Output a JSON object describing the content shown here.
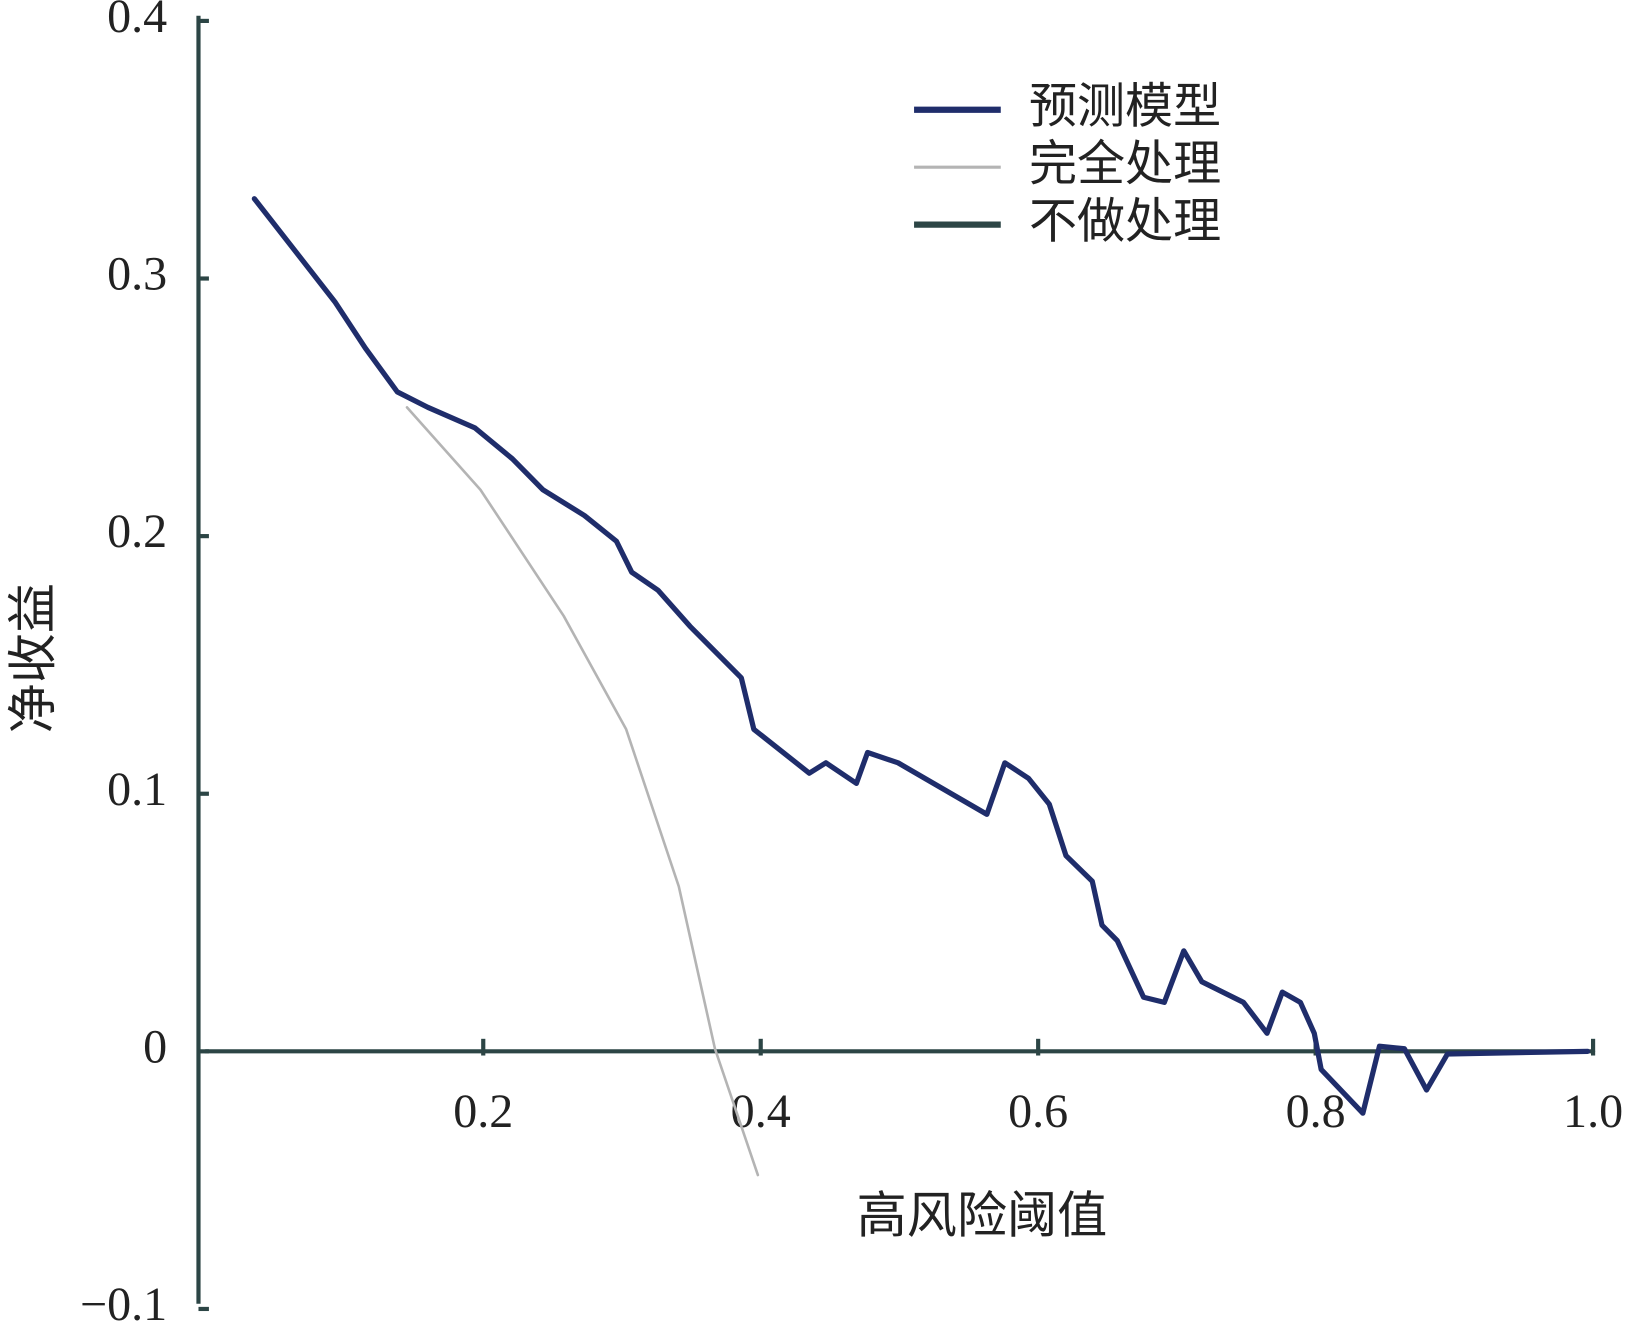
{
  "chart_data": {
    "type": "line",
    "xlabel": "高风险阈值",
    "ylabel": "净收益",
    "xlim": [
      0,
      1
    ],
    "ylim": [
      -0.1,
      0.4
    ],
    "xticks": [
      0.2,
      0.4,
      0.6,
      0.8,
      {
        "value": 1,
        "label": "1.0"
      }
    ],
    "yticks": [
      {
        "value": -0.1,
        "label": "−0.1"
      },
      0,
      0.1,
      0.2,
      0.3,
      0.4
    ],
    "legend": "upper right",
    "series": [
      {
        "name": "预测模型",
        "color": "#1f2d6b",
        "x": [
          0.035,
          0.093,
          0.115,
          0.138,
          0.16,
          0.194,
          0.221,
          0.243,
          0.273,
          0.296,
          0.307,
          0.326,
          0.349,
          0.386,
          0.395,
          0.435,
          0.447,
          0.469,
          0.477,
          0.499,
          0.563,
          0.576,
          0.593,
          0.608,
          0.62,
          0.639,
          0.646,
          0.657,
          0.676,
          0.691,
          0.705,
          0.718,
          0.748,
          0.765,
          0.776,
          0.789,
          0.799,
          0.804,
          0.834,
          0.846,
          0.864,
          0.88,
          0.895,
          0.996
        ],
        "values": [
          0.331,
          0.291,
          0.273,
          0.256,
          0.25,
          0.242,
          0.23,
          0.218,
          0.208,
          0.198,
          0.186,
          0.179,
          0.165,
          0.145,
          0.125,
          0.108,
          0.112,
          0.104,
          0.116,
          0.112,
          0.092,
          0.112,
          0.106,
          0.096,
          0.076,
          0.066,
          0.049,
          0.043,
          0.021,
          0.019,
          0.039,
          0.027,
          0.019,
          0.007,
          0.023,
          0.019,
          0.007,
          -0.007,
          -0.024,
          0.002,
          0.001,
          -0.015,
          -0.001,
          0
        ]
      },
      {
        "name": "完全处理",
        "color": "#b4b4b4",
        "x": [
          0.145,
          0.198,
          0.258,
          0.303,
          0.341,
          0.367,
          0.398
        ],
        "values": [
          0.25,
          0.218,
          0.169,
          0.125,
          0.064,
          0.001,
          -0.048
        ]
      },
      {
        "name": "不做处理",
        "color": "#2c4545",
        "x": [
          0,
          1
        ],
        "values": [
          0,
          0
        ]
      }
    ]
  }
}
